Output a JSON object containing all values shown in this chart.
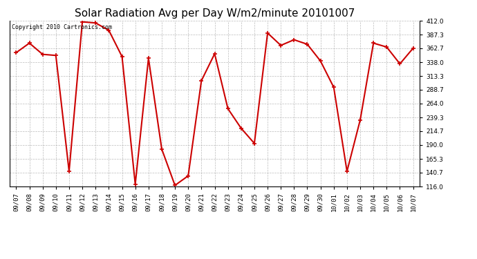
{
  "title": "Solar Radiation Avg per Day W/m2/minute 20101007",
  "copyright_text": "Copyright 2010 Cartronics.com",
  "dates": [
    "09/07",
    "09/08",
    "09/09",
    "09/10",
    "09/11",
    "09/12",
    "09/13",
    "09/14",
    "09/15",
    "09/16",
    "09/17",
    "09/18",
    "09/19",
    "09/20",
    "09/21",
    "09/22",
    "09/23",
    "09/24",
    "09/25",
    "09/26",
    "09/27",
    "09/28",
    "09/29",
    "09/30",
    "10/01",
    "10/02",
    "10/03",
    "10/04",
    "10/05",
    "10/06",
    "10/07"
  ],
  "values": [
    355.0,
    372.0,
    352.0,
    350.0,
    143.0,
    410.0,
    408.0,
    395.0,
    348.0,
    120.0,
    345.0,
    183.0,
    118.0,
    135.0,
    305.0,
    353.0,
    255.0,
    220.0,
    193.0,
    390.0,
    368.0,
    378.0,
    370.0,
    340.0,
    293.0,
    143.0,
    235.0,
    372.0,
    365.0,
    335.0,
    363.0
  ],
  "line_color": "#cc0000",
  "marker": "+",
  "marker_color": "#cc0000",
  "marker_size": 5,
  "line_width": 1.5,
  "background_color": "#ffffff",
  "plot_bg_color": "#ffffff",
  "grid_color": "#aaaaaa",
  "yticks": [
    116.0,
    140.7,
    165.3,
    190.0,
    214.7,
    239.3,
    264.0,
    288.7,
    313.3,
    338.0,
    362.7,
    387.3,
    412.0
  ],
  "ylim": [
    116.0,
    412.0
  ],
  "title_fontsize": 11,
  "tick_fontsize": 6.5,
  "copyright_fontsize": 6
}
